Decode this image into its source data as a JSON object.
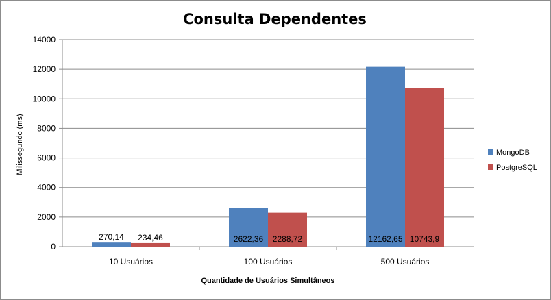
{
  "chart_data": {
    "type": "bar",
    "title": "Consulta Dependentes",
    "xlabel": "Quantidade de Usuários Simultâneos",
    "ylabel": "Milissegundo (ms)",
    "categories": [
      "10 Usuários",
      "100 Usuários",
      "500 Usuários"
    ],
    "series": [
      {
        "name": "MongoDB",
        "values": [
          270.14,
          2622.36,
          12162.65
        ],
        "labels": [
          "270,14",
          "2622,36",
          "12162,65"
        ],
        "color": "#4f81bd"
      },
      {
        "name": "PostgreSQL",
        "values": [
          234.46,
          2288.72,
          10743.9
        ],
        "labels": [
          "234,46",
          "2288,72",
          "10743,9"
        ],
        "color": "#c0504d"
      }
    ],
    "ylim": [
      0,
      14000
    ],
    "yticks": [
      0,
      2000,
      4000,
      6000,
      8000,
      10000,
      12000,
      14000
    ],
    "grid": true,
    "legend_position": "right"
  }
}
